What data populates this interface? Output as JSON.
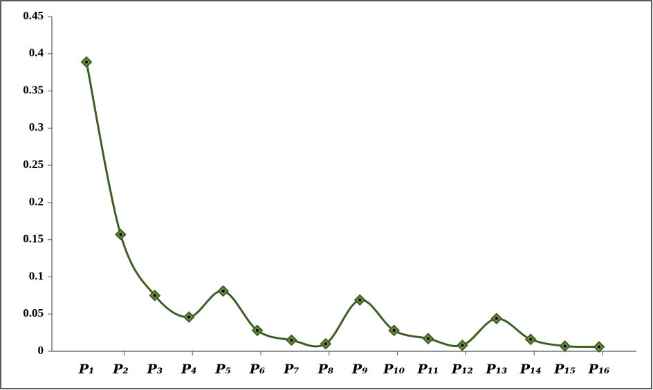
{
  "chart_data": {
    "type": "line",
    "categories": [
      "P₁",
      "P₂",
      "P₃",
      "P₄",
      "P₅",
      "P₆",
      "P₇",
      "P₈",
      "P₉",
      "P₁₀",
      "P₁₁",
      "P₁₂",
      "P₁₃",
      "P₁₄",
      "P₁₅",
      "P₁₆"
    ],
    "series": [
      {
        "color": "#3f5e22",
        "values": [
          0.389,
          0.157,
          0.075,
          0.046,
          0.081,
          0.028,
          0.015,
          0.01,
          0.069,
          0.028,
          0.017,
          0.008,
          0.044,
          0.016,
          0.007,
          0.006
        ]
      }
    ],
    "ylim": [
      0,
      0.45
    ],
    "yticks": [
      0,
      0.05,
      0.1,
      0.15,
      0.2,
      0.25,
      0.3,
      0.35,
      0.4,
      0.45
    ],
    "smooth": true
  }
}
